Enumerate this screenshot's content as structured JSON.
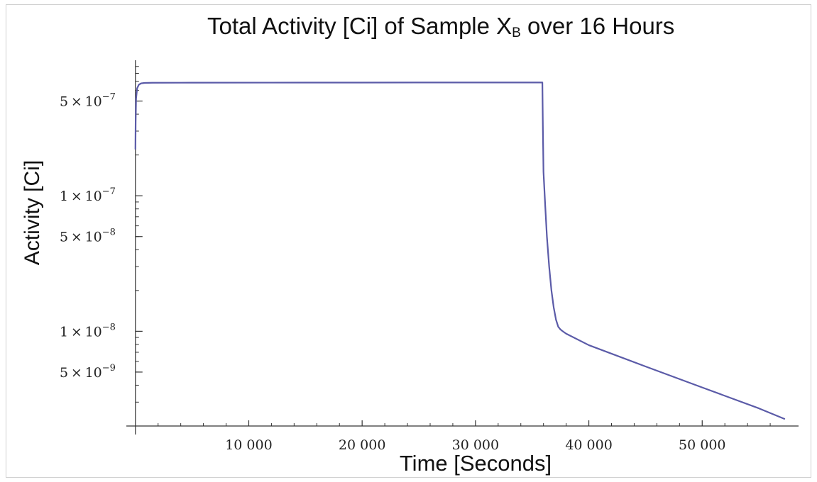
{
  "chart_data": {
    "type": "line",
    "title_main": "Total Activity [Ci] of Sample X",
    "title_sub": "B",
    "title_tail": " over 16 Hours",
    "xlabel": "Time  [Seconds]",
    "ylabel": "Activity [Ci]",
    "y_scale": "log",
    "xlim": [
      -800,
      58500
    ],
    "ylim": [
      2e-09,
      1e-06
    ],
    "x_ticks": [
      10000,
      20000,
      30000,
      40000,
      50000
    ],
    "x_tick_labels": [
      "10 000",
      "20 000",
      "30 000",
      "40 000",
      "50 000"
    ],
    "y_ticks": [
      {
        "value": 5e-07,
        "mantissa": "5",
        "exp": "−7"
      },
      {
        "value": 1e-07,
        "mantissa": "1",
        "exp": "−7"
      },
      {
        "value": 5e-08,
        "mantissa": "5",
        "exp": "−8"
      },
      {
        "value": 1e-08,
        "mantissa": "1",
        "exp": "−8"
      },
      {
        "value": 5e-09,
        "mantissa": "5",
        "exp": "−9"
      }
    ],
    "series": [
      {
        "color": "#5b5ba8",
        "x": [
          0,
          20,
          60,
          150,
          300,
          500,
          800,
          1500,
          5000,
          15000,
          25000,
          35900,
          35950,
          36000,
          36150,
          36300,
          36500,
          36700,
          36900,
          37100,
          37300,
          37500,
          37700,
          38000,
          40000,
          45000,
          50000,
          55000,
          57300
        ],
        "y": [
          2.2e-07,
          3.5e-07,
          5.2e-07,
          6.2e-07,
          6.6e-07,
          6.75e-07,
          6.8e-07,
          6.82e-07,
          6.83e-07,
          6.84e-07,
          6.85e-07,
          6.85e-07,
          3e-07,
          1.5e-07,
          8.5e-08,
          5e-08,
          3e-08,
          2e-08,
          1.5e-08,
          1.22e-08,
          1.08e-08,
          1.03e-08,
          1e-08,
          9.6e-09,
          7.9e-09,
          5.5e-09,
          3.85e-09,
          2.7e-09,
          2.25e-09
        ]
      }
    ]
  }
}
